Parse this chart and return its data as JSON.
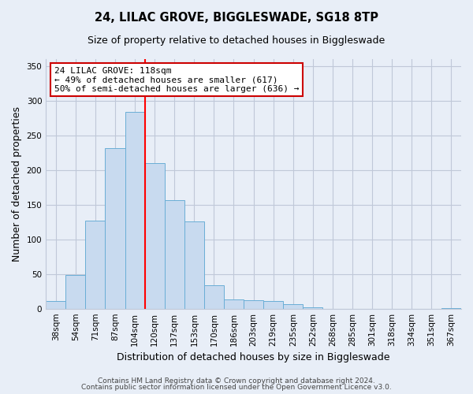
{
  "title": "24, LILAC GROVE, BIGGLESWADE, SG18 8TP",
  "subtitle": "Size of property relative to detached houses in Biggleswade",
  "xlabel": "Distribution of detached houses by size in Biggleswade",
  "ylabel": "Number of detached properties",
  "bar_labels": [
    "38sqm",
    "54sqm",
    "71sqm",
    "87sqm",
    "104sqm",
    "120sqm",
    "137sqm",
    "153sqm",
    "170sqm",
    "186sqm",
    "203sqm",
    "219sqm",
    "235sqm",
    "252sqm",
    "268sqm",
    "285sqm",
    "301sqm",
    "318sqm",
    "334sqm",
    "351sqm",
    "367sqm"
  ],
  "bar_heights": [
    11,
    48,
    127,
    232,
    284,
    210,
    157,
    126,
    34,
    13,
    12,
    11,
    7,
    2,
    0,
    0,
    0,
    0,
    0,
    0,
    1
  ],
  "bar_color": "#c8daef",
  "bar_edge_color": "#6aaed6",
  "vline_color": "red",
  "ylim": [
    0,
    360
  ],
  "yticks": [
    0,
    50,
    100,
    150,
    200,
    250,
    300,
    350
  ],
  "annotation_title": "24 LILAC GROVE: 118sqm",
  "annotation_line1": "← 49% of detached houses are smaller (617)",
  "annotation_line2": "50% of semi-detached houses are larger (636) →",
  "annotation_box_color": "#ffffff",
  "annotation_box_edge": "#cc0000",
  "footer1": "Contains HM Land Registry data © Crown copyright and database right 2024.",
  "footer2": "Contains public sector information licensed under the Open Government Licence v3.0.",
  "bg_color": "#e8eef7",
  "grid_color": "#c0c8d8",
  "title_fontsize": 10.5,
  "subtitle_fontsize": 9,
  "axis_label_fontsize": 9,
  "tick_fontsize": 7.5,
  "annotation_fontsize": 8,
  "footer_fontsize": 6.5
}
